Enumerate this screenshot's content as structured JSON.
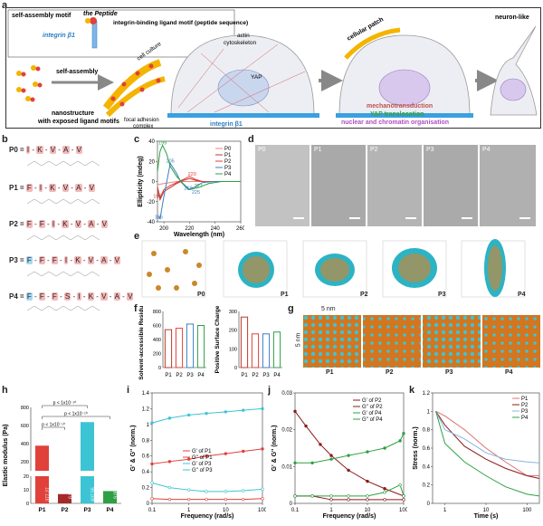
{
  "panels": {
    "a": "a",
    "b": "b",
    "c": "c",
    "d": "d",
    "e": "e",
    "f": "f",
    "g": "g",
    "h": "h",
    "i": "i",
    "j": "j",
    "k": "k"
  },
  "schematic": {
    "self_assembly_motif": "self-assembly motif",
    "the_peptide": "the Peptide",
    "integrin_binding": "integrin-binding ligand motif (peptide sequence)",
    "integrin_b1": "integrin β1",
    "self_assembly": "self-assembly",
    "nanostructure": "nanostructure",
    "exposed": "with exposed ligand motifs",
    "cell_culture": "cell culture",
    "actin": "actin",
    "cytoskeleton": "cytoskeleton",
    "yap": "YAP",
    "focal_adhesion": "focal adhesion",
    "complex": "complex",
    "integrin_b1_2": "integrin β1",
    "cellular_patch": "cellular patch",
    "mechanotransduction": "mechanotransduction",
    "yap_translocation": "YAP translocation",
    "nuclear": "nuclear and chromatin organisation",
    "neuron_like": "neuron-like"
  },
  "sequences": [
    {
      "name": "P0 =",
      "res": [
        "I",
        "K",
        "V",
        "A",
        "V"
      ],
      "blue": 0
    },
    {
      "name": "P1 =",
      "res": [
        "F",
        "I",
        "K",
        "V",
        "A",
        "V"
      ],
      "blue": 0
    },
    {
      "name": "P2 =",
      "res": [
        "F",
        "F",
        "I",
        "K",
        "V",
        "A",
        "V"
      ],
      "blue": 0
    },
    {
      "name": "P3 =",
      "res": [
        "F",
        "F",
        "F",
        "I",
        "K",
        "V",
        "A",
        "V"
      ],
      "blue": 1
    },
    {
      "name": "P4 =",
      "res": [
        "F",
        "F",
        "F",
        "S",
        "I",
        "K",
        "V",
        "A",
        "V"
      ],
      "blue": 1
    }
  ],
  "tem_labels": [
    "P0",
    "P1",
    "P2",
    "P3",
    "P4"
  ],
  "md_labels": [
    "P0",
    "P1",
    "P2",
    "P3",
    "P4"
  ],
  "g": {
    "dim_x": "5 nm",
    "dim_y": "5 nm",
    "labels": [
      "P1",
      "P2",
      "P3",
      "P4"
    ]
  },
  "colors": {
    "P0": "#f08080",
    "P1": "#c0392b",
    "P2": "#e0413a",
    "P3": "#3b7fc4",
    "P4": "#2ea043"
  },
  "chart_data": [
    {
      "id": "c",
      "type": "line",
      "xlabel": "Wavelength (nm)",
      "ylabel": "Ellipticity (mdeg)",
      "xlim": [
        195,
        260
      ],
      "ylim": [
        -40,
        40
      ],
      "xticks": [
        200,
        220,
        240,
        260
      ],
      "yticks": [
        -40,
        -20,
        0,
        20,
        40
      ],
      "legend": "top-right",
      "series": [
        {
          "name": "P0",
          "x": [
            195,
            200,
            205,
            210,
            215,
            220,
            230,
            240,
            250,
            260
          ],
          "y": [
            -3,
            -2,
            -1,
            0,
            0,
            0,
            0,
            0,
            0,
            0
          ]
        },
        {
          "name": "P1",
          "x": [
            195,
            197,
            200,
            205,
            210,
            215,
            220,
            225,
            230,
            240,
            260
          ],
          "y": [
            -8,
            -18,
            -10,
            -6,
            -2,
            1,
            3,
            1,
            0,
            0,
            0
          ]
        },
        {
          "name": "P2",
          "x": [
            195,
            197,
            200,
            205,
            210,
            215,
            220,
            225,
            230,
            240,
            260
          ],
          "y": [
            -5,
            -16,
            -8,
            -4,
            -1,
            2,
            5,
            2,
            0,
            0,
            0
          ]
        },
        {
          "name": "P3",
          "x": [
            195,
            197,
            200,
            205,
            210,
            213,
            219,
            225,
            230,
            240,
            260
          ],
          "y": [
            -34,
            -37,
            -15,
            18,
            8,
            0,
            -8,
            -5,
            -1,
            0,
            0
          ]
        },
        {
          "name": "P4",
          "x": [
            195,
            197,
            199,
            202,
            205,
            210,
            215,
            220,
            227,
            235,
            245,
            260
          ],
          "y": [
            10,
            30,
            36,
            28,
            15,
            5,
            -2,
            -8,
            -6,
            -2,
            0,
            0
          ]
        }
      ],
      "annotations": [
        {
          "text": "199",
          "x": 199,
          "y": 37,
          "series": "P4"
        },
        {
          "text": "205",
          "x": 205,
          "y": 19,
          "series": "P3"
        },
        {
          "text": "220",
          "x": 222,
          "y": 6,
          "series": "P2"
        },
        {
          "text": "219",
          "x": 219,
          "y": -8,
          "series": "P3"
        },
        {
          "text": "227",
          "x": 227,
          "y": -6,
          "series": "P4"
        },
        {
          "text": "195",
          "x": 195,
          "y": -16,
          "series": "P1"
        },
        {
          "text": "196",
          "x": 196,
          "y": -37,
          "series": "P3"
        },
        {
          "text": "225",
          "x": 225,
          "y": -12,
          "series": "P3"
        }
      ]
    },
    {
      "id": "f1",
      "type": "bar",
      "ylabel": "Solvent-accessible Residues",
      "categories": [
        "P1",
        "P2",
        "P3",
        "P4"
      ],
      "values": [
        540,
        560,
        620,
        600
      ],
      "ylim": [
        0,
        800
      ],
      "yticks": [
        0,
        200,
        400,
        600,
        800
      ]
    },
    {
      "id": "f2",
      "type": "bar",
      "ylabel": "Positive Surface Charge",
      "categories": [
        "P1",
        "P2",
        "P3",
        "P4"
      ],
      "values": [
        270,
        180,
        180,
        190
      ],
      "ylim": [
        0,
        300
      ],
      "yticks": [
        0,
        100,
        200,
        300
      ]
    },
    {
      "id": "h",
      "type": "bar",
      "ylabel": "Elastic modulus (Pa)",
      "categories": [
        "P1",
        "P2",
        "P3",
        "P4"
      ],
      "values": [
        377.27,
        6.84,
        637.55,
        9.05
      ],
      "value_labels": [
        "377.27",
        "6.84",
        "637.55",
        "9.05"
      ],
      "pvalues": [
        "p < 1x10⁻¹⁰",
        "p < 1x10⁻¹⁰",
        "p < 1x10⁻¹⁰"
      ],
      "yticks_low": [
        0,
        10,
        20
      ],
      "yticks_high": [
        200,
        400,
        600,
        800
      ]
    },
    {
      "id": "i",
      "type": "line",
      "xlabel": "Frequency (rad/s)",
      "ylabel": "G' & G'' (norm.)",
      "xlim": [
        0.1,
        100
      ],
      "ylim": [
        0,
        1.4
      ],
      "log_x": true,
      "yticks": [
        0,
        0.2,
        0.4,
        0.6,
        0.8,
        1.0,
        1.2,
        1.4
      ],
      "series": [
        {
          "name": "G' of P1",
          "x": [
            0.1,
            0.3,
            1,
            3,
            10,
            30,
            100
          ],
          "y": [
            0.5,
            0.53,
            0.56,
            0.6,
            0.63,
            0.66,
            0.69
          ]
        },
        {
          "name": "G'' of P1",
          "x": [
            0.1,
            0.3,
            1,
            3,
            10,
            30,
            100
          ],
          "y": [
            0.06,
            0.05,
            0.05,
            0.05,
            0.05,
            0.05,
            0.06
          ]
        },
        {
          "name": "G' of P3",
          "x": [
            0.1,
            0.3,
            1,
            3,
            10,
            30,
            100
          ],
          "y": [
            1.02,
            1.08,
            1.12,
            1.14,
            1.16,
            1.18,
            1.2
          ]
        },
        {
          "name": "G'' of P3",
          "x": [
            0.1,
            0.3,
            1,
            3,
            10,
            30,
            100
          ],
          "y": [
            0.26,
            0.2,
            0.17,
            0.15,
            0.15,
            0.16,
            0.18
          ]
        }
      ]
    },
    {
      "id": "j",
      "type": "line",
      "xlabel": "Frequency (rad/s)",
      "ylabel": "G' & G'' (norm.)",
      "xlim": [
        0.1,
        100
      ],
      "ylim": [
        0,
        0.03
      ],
      "log_x": true,
      "yticks": [
        0,
        0.01,
        0.02,
        0.03
      ],
      "series": [
        {
          "name": "G' of P2",
          "x": [
            0.1,
            0.2,
            0.5,
            1,
            3,
            10,
            30,
            100
          ],
          "y": [
            0.025,
            0.021,
            0.016,
            0.013,
            0.009,
            0.006,
            0.004,
            0.002
          ]
        },
        {
          "name": "G'' of P2",
          "x": [
            0.1,
            0.3,
            1,
            3,
            10,
            30,
            100
          ],
          "y": [
            0.002,
            0.002,
            0.001,
            0.001,
            0.001,
            0.001,
            0.001
          ]
        },
        {
          "name": "G' of P4",
          "x": [
            0.1,
            0.3,
            1,
            3,
            10,
            30,
            80,
            100
          ],
          "y": [
            0.011,
            0.011,
            0.012,
            0.013,
            0.014,
            0.015,
            0.017,
            0.019
          ]
        },
        {
          "name": "G'' of P4",
          "x": [
            0.1,
            0.3,
            1,
            3,
            10,
            30,
            80,
            100
          ],
          "y": [
            0.002,
            0.002,
            0.002,
            0.002,
            0.002,
            0.003,
            0.005,
            0.002
          ]
        }
      ]
    },
    {
      "id": "k",
      "type": "line",
      "xlabel": "Time (s)",
      "ylabel": "Stress (norm.)",
      "xlim": [
        0.5,
        200
      ],
      "ylim": [
        0,
        1.2
      ],
      "log_x": true,
      "yticks": [
        0,
        0.2,
        0.4,
        0.6,
        0.8,
        1.0,
        1.2
      ],
      "series": [
        {
          "name": "P1",
          "x": [
            0.6,
            1,
            3,
            10,
            30,
            100,
            200
          ],
          "y": [
            1,
            0.95,
            0.8,
            0.6,
            0.45,
            0.3,
            0.3
          ]
        },
        {
          "name": "P2",
          "x": [
            0.6,
            1,
            3,
            10,
            30,
            100,
            200
          ],
          "y": [
            1,
            0.85,
            0.62,
            0.48,
            0.38,
            0.3,
            0.27
          ]
        },
        {
          "name": "P3",
          "x": [
            0.6,
            1,
            3,
            10,
            30,
            100,
            200
          ],
          "y": [
            1,
            0.8,
            0.7,
            0.55,
            0.48,
            0.45,
            0.44
          ]
        },
        {
          "name": "P4",
          "x": [
            0.6,
            1,
            3,
            10,
            30,
            100,
            200
          ],
          "y": [
            1,
            0.65,
            0.45,
            0.3,
            0.18,
            0.1,
            0.08
          ]
        }
      ]
    }
  ]
}
